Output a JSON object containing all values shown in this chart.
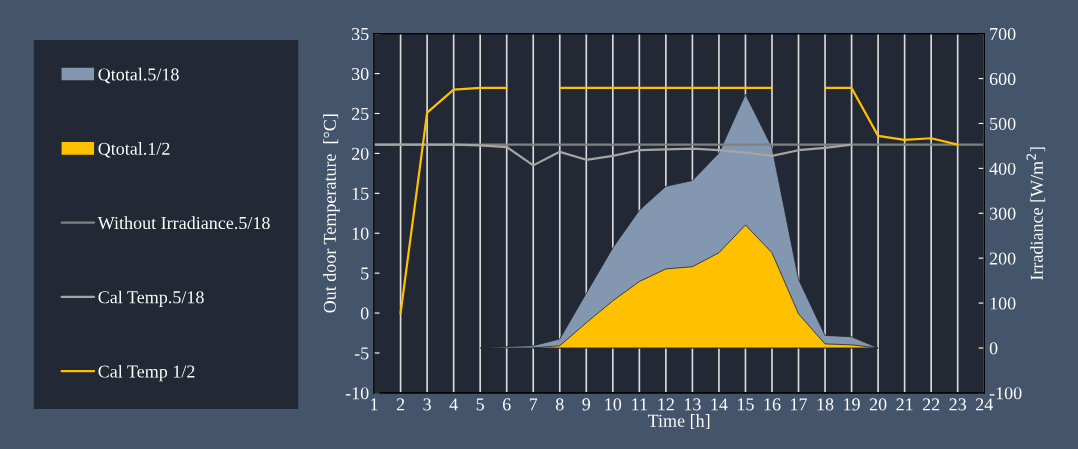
{
  "chart_data": {
    "type": "area",
    "xlabel": "Time [h]",
    "ylabel": "Out door Temperature  [°C]",
    "y2label": "Irradiance [W/m$^{2}$]",
    "x": [
      1,
      2,
      3,
      4,
      5,
      6,
      7,
      8,
      9,
      10,
      11,
      12,
      13,
      14,
      15,
      16,
      17,
      18,
      19,
      20,
      21,
      22,
      23,
      24
    ],
    "xlim": [
      1,
      24
    ],
    "xticks": [
      1,
      2,
      3,
      4,
      5,
      6,
      7,
      8,
      9,
      10,
      11,
      12,
      13,
      14,
      15,
      16,
      17,
      18,
      19,
      20,
      21,
      22,
      23,
      24
    ],
    "ylim": [
      -10,
      35
    ],
    "yticks": [
      -10,
      -5,
      0,
      5,
      10,
      15,
      20,
      25,
      30,
      35
    ],
    "y2lim": [
      -100,
      700
    ],
    "y2ticks": [
      -100,
      0,
      100,
      200,
      300,
      400,
      500,
      600,
      700
    ],
    "grid": "x",
    "legend": "left",
    "series": [
      {
        "name": "Qtotal.5/18",
        "axis": "y2",
        "color": "#8497b0",
        "values": [
          null,
          null,
          null,
          null,
          0,
          3,
          5,
          20,
          122,
          223,
          307,
          360,
          373,
          434,
          565,
          447,
          153,
          28,
          25,
          0,
          null,
          null,
          null,
          null
        ]
      },
      {
        "name": "Qtotal.1/2",
        "axis": "y2",
        "color": "#ffc000",
        "values": [
          null,
          null,
          null,
          null,
          null,
          null,
          0,
          5,
          56,
          105,
          148,
          176,
          181,
          212,
          274,
          212,
          76,
          9,
          7,
          0,
          null,
          null,
          null,
          null
        ]
      },
      {
        "name": "Without Irradiance.5/18",
        "type": "line",
        "color": "#808080",
        "values": [
          21.1,
          21.1,
          21.1,
          21.1,
          21.1,
          21.1,
          21.1,
          21.1,
          21.1,
          21.1,
          21.1,
          21.1,
          21.1,
          21.1,
          21.1,
          21.1,
          21.1,
          21.1,
          21.1,
          21.1,
          21.1,
          21.1,
          21.1,
          21.1
        ]
      },
      {
        "name": "Cal Temp.5/18",
        "type": "line",
        "color": "#a5a5a5",
        "values": [
          21.1,
          21.1,
          21.1,
          21.1,
          21.0,
          20.8,
          18.5,
          20.2,
          19.2,
          19.7,
          20.4,
          20.5,
          20.6,
          20.4,
          20.1,
          19.7,
          20.4,
          20.7,
          21.1,
          null,
          null,
          null,
          null,
          null
        ]
      },
      {
        "name": "Cal Temp 1/2",
        "type": "line",
        "color": "#ffc000",
        "values": [
          null,
          0,
          25.1,
          28.0,
          28.2,
          28.2,
          null,
          28.2,
          28.2,
          28.2,
          28.2,
          28.2,
          28.2,
          28.2,
          28.2,
          28.2,
          null,
          28.2,
          28.2,
          22.2,
          21.7,
          21.9,
          21.1,
          null
        ]
      }
    ]
  }
}
